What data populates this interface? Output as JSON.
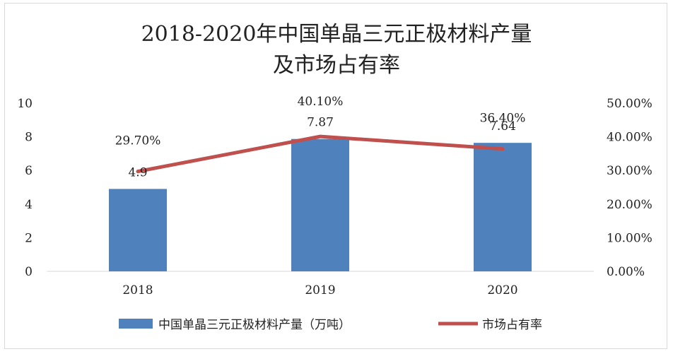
{
  "chart_data": {
    "type": "bar+line",
    "title_lines": [
      "2018-2020年中国单晶三元正极材料产量",
      "及市场占有率"
    ],
    "categories": [
      "2018",
      "2019",
      "2020"
    ],
    "series": [
      {
        "name": "中国单晶三元正极材料产量（万吨）",
        "type": "bar",
        "axis": "left",
        "values": [
          4.9,
          7.87,
          7.64
        ],
        "labels": [
          "4.9",
          "7.87",
          "7.64"
        ],
        "color": "#4F81BD"
      },
      {
        "name": "市场占有率",
        "type": "line",
        "axis": "right",
        "values": [
          29.7,
          40.1,
          36.4
        ],
        "labels": [
          "29.70%",
          "40.10%",
          "36.40%"
        ],
        "color": "#C0504D"
      }
    ],
    "left_axis": {
      "min": 0,
      "max": 10,
      "step": 2,
      "ticks": [
        "0",
        "2",
        "4",
        "6",
        "8",
        "10"
      ]
    },
    "right_axis": {
      "min": 0,
      "max": 50,
      "step": 10,
      "ticks": [
        "0.00%",
        "10.00%",
        "20.00%",
        "30.00%",
        "40.00%",
        "50.00%"
      ]
    },
    "legend_position": "bottom"
  }
}
